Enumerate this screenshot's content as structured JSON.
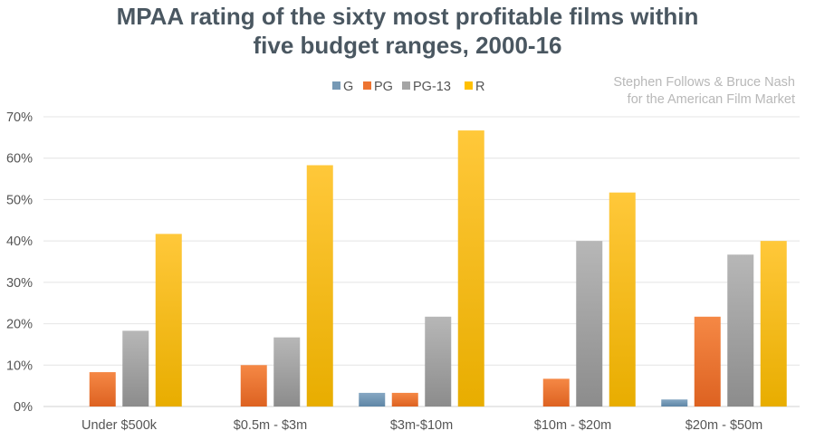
{
  "chart_data": {
    "type": "bar",
    "title_line1": "MPAA rating of the sixty most profitable films within",
    "title_line2": "five budget ranges, 2000-16",
    "credit_line1": "Stephen Follows & Bruce Nash",
    "credit_line2": "for the American Film Market",
    "categories": [
      "Under $500k",
      "$0.5m - $3m",
      "$3m-$10m",
      "$10m - $20m",
      "$20m - $50m"
    ],
    "series": [
      {
        "name": "G",
        "color": "#7699b5",
        "values": [
          0,
          0,
          3.3,
          0,
          1.7
        ]
      },
      {
        "name": "PG",
        "color": "#ed7431",
        "values": [
          8.3,
          10,
          3.3,
          6.7,
          21.7
        ]
      },
      {
        "name": "PG-13",
        "color": "#a5a5a5",
        "values": [
          18.3,
          16.7,
          21.7,
          40,
          36.7
        ]
      },
      {
        "name": "R",
        "color": "#ffc000",
        "values": [
          41.7,
          58.3,
          66.7,
          51.7,
          40
        ]
      }
    ],
    "ylim": [
      0,
      70
    ],
    "yticks": [
      0,
      10,
      20,
      30,
      40,
      50,
      60,
      70
    ],
    "ytick_labels": [
      "0%",
      "10%",
      "20%",
      "30%",
      "40%",
      "50%",
      "60%",
      "70%"
    ],
    "xlabel": "",
    "ylabel": "",
    "grid": true,
    "legend": "top-center"
  }
}
